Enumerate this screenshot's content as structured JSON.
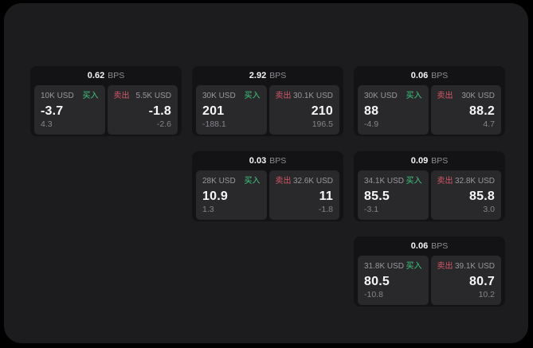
{
  "labels": {
    "buy": "买入",
    "sell": "卖出",
    "bps_unit": "BPS"
  },
  "colors": {
    "outside": "#000000",
    "surface": "#1c1c1e",
    "card": "#131315",
    "panel": "#29292b",
    "buy_green": "#3fca80",
    "sell_red": "#d45767",
    "text_primary": "#f5f5f6",
    "text_secondary": "#8e8e93"
  },
  "cards": [
    {
      "grid": {
        "row": 1,
        "col": 1
      },
      "bps": "0.62",
      "buy": {
        "size": "10K USD",
        "price": "-3.7",
        "delta": "4.3"
      },
      "sell": {
        "size": "5.5K USD",
        "price": "-1.8",
        "delta": "-2.6"
      }
    },
    {
      "grid": {
        "row": 1,
        "col": 2
      },
      "bps": "2.92",
      "buy": {
        "size": "30K USD",
        "price": "201",
        "delta": "-188.1"
      },
      "sell": {
        "size": "30.1K USD",
        "price": "210",
        "delta": "196.5"
      }
    },
    {
      "grid": {
        "row": 1,
        "col": 3
      },
      "bps": "0.06",
      "buy": {
        "size": "30K USD",
        "price": "88",
        "delta": "-4.9"
      },
      "sell": {
        "size": "30K USD",
        "price": "88.2",
        "delta": "4.7"
      }
    },
    {
      "grid": {
        "row": 2,
        "col": 2
      },
      "bps": "0.03",
      "buy": {
        "size": "28K USD",
        "price": "10.9",
        "delta": "1.3"
      },
      "sell": {
        "size": "32.6K USD",
        "price": "11",
        "delta": "-1.8"
      }
    },
    {
      "grid": {
        "row": 2,
        "col": 3
      },
      "bps": "0.09",
      "buy": {
        "size": "34.1K USD",
        "price": "85.5",
        "delta": "-3.1"
      },
      "sell": {
        "size": "32.8K USD",
        "price": "85.8",
        "delta": "3.0"
      }
    },
    {
      "grid": {
        "row": 3,
        "col": 3
      },
      "bps": "0.06",
      "buy": {
        "size": "31.8K USD",
        "price": "80.5",
        "delta": "-10.8"
      },
      "sell": {
        "size": "39.1K USD",
        "price": "80.7",
        "delta": "10.2"
      }
    }
  ]
}
